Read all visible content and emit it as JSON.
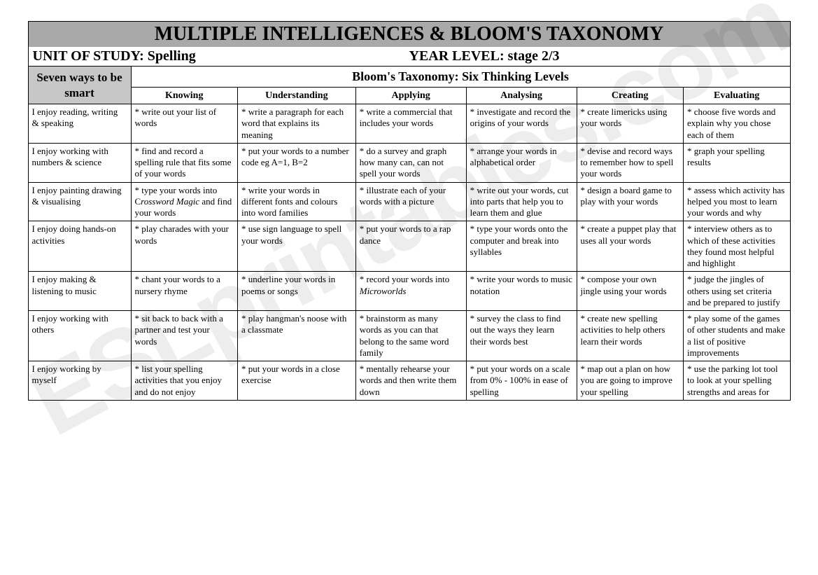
{
  "title": "MULTIPLE INTELLIGENCES & BLOOM'S TAXONOMY",
  "subheader": {
    "unit_label": "UNIT OF STUDY:",
    "unit_value": "Spelling",
    "year_label": "YEAR LEVEL:",
    "year_value": "stage 2/3"
  },
  "corner_header": "Seven ways to be smart",
  "top_header": "Bloom's Taxonomy: Six Thinking Levels",
  "columns": [
    "Knowing",
    "Understanding",
    "Applying",
    "Analysing",
    "Creating",
    "Evaluating"
  ],
  "col_widths": [
    "13.5%",
    "14%",
    "15.5%",
    "14.5%",
    "14.5%",
    "14%",
    "14%"
  ],
  "rows": [
    {
      "label": "I enjoy reading, writing & speaking",
      "cells": [
        "* write out your list of words",
        "* write a paragraph for each word that explains its meaning",
        "* write a commercial that includes your words",
        "* investigate and record  the origins of your words",
        "* create limericks using your words",
        "* choose five words and explain why you chose each of them"
      ]
    },
    {
      "label": "I enjoy working with numbers & science",
      "cells": [
        "* find and record a spelling rule that fits some of your words",
        "* put your words to a number code eg A=1, B=2",
        "* do a survey and graph how many can, can not spell your words",
        "* arrange your words in alphabetical order",
        "* devise and record ways to remember how to spell your words",
        "* graph your spelling results"
      ]
    },
    {
      "label": "I enjoy painting drawing & visualising",
      "cells": [
        "* type your words into C<i>rossword Magic</i> and find your words",
        "* write your words in different fonts and colours into word families",
        "* illustrate each of your words with a picture",
        "* write out your words, cut into parts that help you to learn them and glue",
        "* design a board game to play with your words",
        "* assess which activity has helped you most to learn your words and why"
      ]
    },
    {
      "label": "I enjoy doing hands-on activities",
      "cells": [
        "* play charades with your words",
        "* use sign language to spell your words",
        "* put your words to a rap dance",
        "* type your words onto the computer and break into syllables",
        "* create a puppet play that uses all your words",
        "* interview others as to which of these activities they found most helpful and highlight"
      ]
    },
    {
      "label": "I enjoy making & listening to music",
      "cells": [
        "* chant your words to a nursery rhyme",
        "* underline your words in poems or songs",
        "* record your words into <i>Microworlds</i>",
        "* write your words to music notation",
        "* compose your own jingle using your words",
        "* judge the jingles of others using set criteria and be prepared to justify"
      ]
    },
    {
      "label": "I enjoy working with others",
      "cells": [
        "* sit back to back with a partner and test your words",
        "* play hangman's noose with a classmate",
        "* brainstorm as many words as you can that belong to the same word family",
        "* survey the class to find out the ways they learn their words best",
        "* create new spelling activities to help others learn their words",
        "* play some of the games of other students and make a list of positive improvements"
      ]
    },
    {
      "label": "I enjoy working by myself",
      "cells": [
        "* list your spelling activities that you enjoy and do not enjoy",
        "* put your words in a close exercise",
        "* mentally rehearse your words and then write them down",
        "* put your words on a scale from 0% - 100% in ease of spelling",
        "* map out  a plan on how you are going to improve your spelling",
        "* use the parking lot tool to look at your spelling strengths and areas for"
      ]
    }
  ],
  "watermark": "ESLprintables.com",
  "styling": {
    "title_bg": "#a9a9a9",
    "corner_bg": "#c7c7c7",
    "border_color": "#000000",
    "font_family": "Times New Roman",
    "title_fontsize": 28,
    "header_fontsize": 18,
    "colheader_fontsize": 14,
    "cell_fontsize": 13,
    "watermark_color": "rgba(0,0,0,0.07)",
    "watermark_rotation_deg": -28
  }
}
